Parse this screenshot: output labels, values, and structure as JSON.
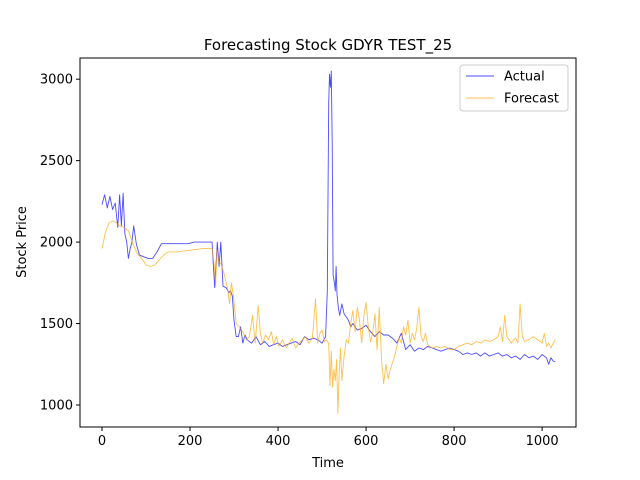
{
  "chart_data": {
    "type": "line",
    "title": "Forecasting Stock GDYR TEST_25",
    "xlabel": "Time",
    "ylabel": "Stock Price",
    "xlim": [
      -50,
      1077
    ],
    "ylim": [
      865,
      3130
    ],
    "xticks": [
      0,
      200,
      400,
      600,
      800,
      1000
    ],
    "yticks": [
      1000,
      1500,
      2000,
      2500,
      3000
    ],
    "grid": false,
    "legend": "top-right",
    "series": [
      {
        "name": "Actual",
        "color": "#0000ff",
        "points": [
          [
            0,
            2230
          ],
          [
            6,
            2290
          ],
          [
            12,
            2210
          ],
          [
            18,
            2280
          ],
          [
            24,
            2200
          ],
          [
            30,
            2240
          ],
          [
            36,
            2090
          ],
          [
            40,
            2290
          ],
          [
            44,
            2100
          ],
          [
            48,
            2300
          ],
          [
            52,
            2050
          ],
          [
            56,
            2000
          ],
          [
            60,
            1900
          ],
          [
            64,
            1960
          ],
          [
            68,
            2000
          ],
          [
            72,
            2100
          ],
          [
            78,
            1990
          ],
          [
            85,
            1920
          ],
          [
            95,
            1910
          ],
          [
            105,
            1900
          ],
          [
            115,
            1900
          ],
          [
            125,
            1940
          ],
          [
            135,
            1990
          ],
          [
            150,
            1990
          ],
          [
            170,
            1990
          ],
          [
            195,
            1990
          ],
          [
            210,
            2000
          ],
          [
            230,
            2000
          ],
          [
            250,
            2000
          ],
          [
            256,
            1720
          ],
          [
            262,
            2000
          ],
          [
            266,
            1850
          ],
          [
            270,
            2000
          ],
          [
            275,
            1730
          ],
          [
            282,
            1720
          ],
          [
            288,
            1690
          ],
          [
            292,
            1700
          ],
          [
            296,
            1670
          ],
          [
            300,
            1520
          ],
          [
            305,
            1420
          ],
          [
            310,
            1420
          ],
          [
            315,
            1480
          ],
          [
            320,
            1380
          ],
          [
            325,
            1430
          ],
          [
            330,
            1400
          ],
          [
            340,
            1380
          ],
          [
            350,
            1420
          ],
          [
            360,
            1370
          ],
          [
            370,
            1390
          ],
          [
            380,
            1360
          ],
          [
            390,
            1370
          ],
          [
            400,
            1380
          ],
          [
            410,
            1360
          ],
          [
            420,
            1370
          ],
          [
            430,
            1380
          ],
          [
            440,
            1390
          ],
          [
            450,
            1370
          ],
          [
            460,
            1420
          ],
          [
            470,
            1400
          ],
          [
            480,
            1410
          ],
          [
            490,
            1400
          ],
          [
            500,
            1380
          ],
          [
            508,
            1420
          ],
          [
            512,
            1700
          ],
          [
            515,
            2850
          ],
          [
            517,
            3030
          ],
          [
            519,
            2950
          ],
          [
            521,
            3050
          ],
          [
            523,
            2600
          ],
          [
            525,
            1800
          ],
          [
            528,
            1750
          ],
          [
            530,
            1700
          ],
          [
            532,
            1850
          ],
          [
            534,
            1680
          ],
          [
            537,
            1600
          ],
          [
            540,
            1550
          ],
          [
            545,
            1620
          ],
          [
            550,
            1560
          ],
          [
            555,
            1540
          ],
          [
            560,
            1520
          ],
          [
            565,
            1480
          ],
          [
            570,
            1500
          ],
          [
            580,
            1460
          ],
          [
            590,
            1470
          ],
          [
            600,
            1490
          ],
          [
            610,
            1450
          ],
          [
            620,
            1420
          ],
          [
            630,
            1450
          ],
          [
            640,
            1430
          ],
          [
            650,
            1430
          ],
          [
            660,
            1410
          ],
          [
            670,
            1380
          ],
          [
            680,
            1440
          ],
          [
            690,
            1340
          ],
          [
            700,
            1370
          ],
          [
            710,
            1330
          ],
          [
            720,
            1350
          ],
          [
            730,
            1340
          ],
          [
            740,
            1360
          ],
          [
            750,
            1350
          ],
          [
            760,
            1340
          ],
          [
            770,
            1330
          ],
          [
            780,
            1340
          ],
          [
            790,
            1350
          ],
          [
            800,
            1340
          ],
          [
            810,
            1330
          ],
          [
            820,
            1310
          ],
          [
            830,
            1320
          ],
          [
            840,
            1310
          ],
          [
            850,
            1320
          ],
          [
            860,
            1300
          ],
          [
            870,
            1320
          ],
          [
            880,
            1300
          ],
          [
            890,
            1310
          ],
          [
            900,
            1320
          ],
          [
            910,
            1300
          ],
          [
            920,
            1310
          ],
          [
            930,
            1290
          ],
          [
            940,
            1300
          ],
          [
            950,
            1280
          ],
          [
            960,
            1310
          ],
          [
            970,
            1290
          ],
          [
            980,
            1300
          ],
          [
            990,
            1280
          ],
          [
            1000,
            1310
          ],
          [
            1010,
            1290
          ],
          [
            1015,
            1250
          ],
          [
            1020,
            1290
          ],
          [
            1025,
            1270
          ],
          [
            1030,
            1265
          ]
        ]
      },
      {
        "name": "Forecast",
        "color": "#ffa500",
        "points": [
          [
            0,
            1960
          ],
          [
            8,
            2060
          ],
          [
            16,
            2120
          ],
          [
            24,
            2130
          ],
          [
            32,
            2120
          ],
          [
            40,
            2100
          ],
          [
            50,
            2090
          ],
          [
            60,
            2070
          ],
          [
            70,
            1990
          ],
          [
            80,
            1930
          ],
          [
            90,
            1900
          ],
          [
            100,
            1860
          ],
          [
            110,
            1850
          ],
          [
            120,
            1860
          ],
          [
            130,
            1890
          ],
          [
            140,
            1920
          ],
          [
            150,
            1940
          ],
          [
            170,
            1940
          ],
          [
            200,
            1950
          ],
          [
            230,
            1960
          ],
          [
            250,
            1960
          ],
          [
            255,
            1860
          ],
          [
            258,
            1730
          ],
          [
            261,
            1950
          ],
          [
            265,
            1880
          ],
          [
            270,
            1870
          ],
          [
            278,
            1800
          ],
          [
            286,
            1700
          ],
          [
            290,
            1620
          ],
          [
            294,
            1750
          ],
          [
            298,
            1680
          ],
          [
            305,
            1500
          ],
          [
            312,
            1480
          ],
          [
            320,
            1450
          ],
          [
            328,
            1400
          ],
          [
            335,
            1420
          ],
          [
            342,
            1550
          ],
          [
            348,
            1380
          ],
          [
            355,
            1610
          ],
          [
            360,
            1440
          ],
          [
            365,
            1380
          ],
          [
            372,
            1430
          ],
          [
            378,
            1400
          ],
          [
            385,
            1450
          ],
          [
            390,
            1370
          ],
          [
            396,
            1420
          ],
          [
            402,
            1360
          ],
          [
            410,
            1400
          ],
          [
            418,
            1350
          ],
          [
            425,
            1380
          ],
          [
            432,
            1410
          ],
          [
            440,
            1350
          ],
          [
            448,
            1380
          ],
          [
            455,
            1400
          ],
          [
            462,
            1420
          ],
          [
            470,
            1380
          ],
          [
            478,
            1410
          ],
          [
            485,
            1650
          ],
          [
            490,
            1380
          ],
          [
            495,
            1440
          ],
          [
            500,
            1460
          ],
          [
            505,
            1390
          ],
          [
            510,
            1400
          ],
          [
            515,
            1380
          ],
          [
            518,
            1120
          ],
          [
            521,
            1330
          ],
          [
            524,
            1110
          ],
          [
            527,
            1220
          ],
          [
            530,
            1150
          ],
          [
            533,
            1280
          ],
          [
            536,
            950
          ],
          [
            539,
            1200
          ],
          [
            542,
            1350
          ],
          [
            545,
            1150
          ],
          [
            550,
            1300
          ],
          [
            555,
            1400
          ],
          [
            560,
            1380
          ],
          [
            565,
            1500
          ],
          [
            570,
            1580
          ],
          [
            575,
            1450
          ],
          [
            580,
            1600
          ],
          [
            585,
            1520
          ],
          [
            590,
            1380
          ],
          [
            595,
            1550
          ],
          [
            600,
            1630
          ],
          [
            605,
            1480
          ],
          [
            610,
            1390
          ],
          [
            615,
            1440
          ],
          [
            620,
            1560
          ],
          [
            625,
            1340
          ],
          [
            630,
            1600
          ],
          [
            635,
            1280
          ],
          [
            640,
            1130
          ],
          [
            645,
            1250
          ],
          [
            650,
            1160
          ],
          [
            655,
            1220
          ],
          [
            660,
            1260
          ],
          [
            665,
            1300
          ],
          [
            670,
            1360
          ],
          [
            675,
            1410
          ],
          [
            680,
            1380
          ],
          [
            685,
            1480
          ],
          [
            690,
            1430
          ],
          [
            695,
            1520
          ],
          [
            700,
            1380
          ],
          [
            705,
            1440
          ],
          [
            710,
            1400
          ],
          [
            715,
            1470
          ],
          [
            720,
            1600
          ],
          [
            725,
            1420
          ],
          [
            730,
            1390
          ],
          [
            735,
            1440
          ],
          [
            740,
            1370
          ],
          [
            745,
            1360
          ],
          [
            750,
            1350
          ],
          [
            760,
            1360
          ],
          [
            770,
            1350
          ],
          [
            780,
            1360
          ],
          [
            790,
            1340
          ],
          [
            800,
            1340
          ],
          [
            810,
            1360
          ],
          [
            820,
            1370
          ],
          [
            830,
            1380
          ],
          [
            840,
            1370
          ],
          [
            850,
            1390
          ],
          [
            860,
            1380
          ],
          [
            870,
            1400
          ],
          [
            880,
            1390
          ],
          [
            890,
            1400
          ],
          [
            900,
            1420
          ],
          [
            905,
            1480
          ],
          [
            910,
            1390
          ],
          [
            915,
            1550
          ],
          [
            920,
            1420
          ],
          [
            925,
            1400
          ],
          [
            930,
            1380
          ],
          [
            935,
            1400
          ],
          [
            940,
            1410
          ],
          [
            945,
            1380
          ],
          [
            950,
            1620
          ],
          [
            955,
            1420
          ],
          [
            960,
            1390
          ],
          [
            970,
            1400
          ],
          [
            980,
            1420
          ],
          [
            990,
            1400
          ],
          [
            1000,
            1380
          ],
          [
            1005,
            1440
          ],
          [
            1010,
            1360
          ],
          [
            1015,
            1380
          ],
          [
            1020,
            1350
          ],
          [
            1025,
            1380
          ],
          [
            1030,
            1400
          ]
        ]
      }
    ]
  }
}
